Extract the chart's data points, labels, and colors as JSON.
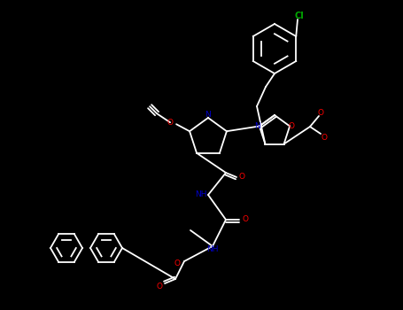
{
  "background_color": "#000000",
  "bond_color": "#ffffff",
  "atom_colors": {
    "N": "#0000cd",
    "O": "#ff0000",
    "Cl": "#00aa00",
    "C": "#ffffff"
  },
  "title": "",
  "figsize": [
    4.55,
    3.5
  ],
  "dpi": 100
}
